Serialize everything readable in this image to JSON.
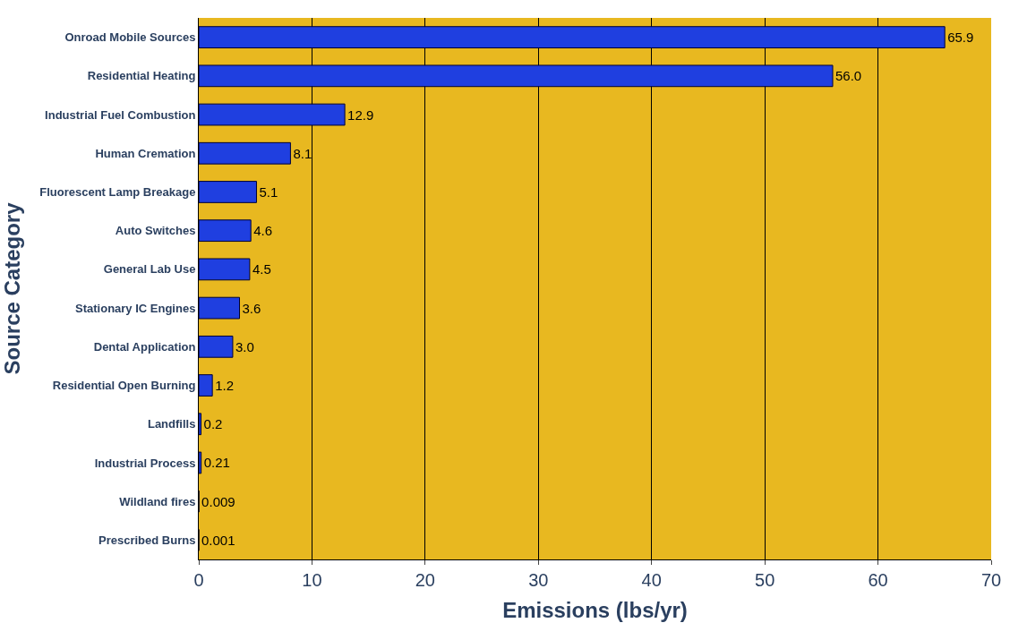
{
  "chart_data": {
    "type": "bar",
    "orientation": "horizontal",
    "xlabel": "Emissions (lbs/yr)",
    "ylabel": "Source Category",
    "categories": [
      "Onroad Mobile Sources",
      "Residential Heating",
      "Industrial Fuel Combustion",
      "Human Cremation",
      "Fluorescent Lamp Breakage",
      "Auto Switches",
      "General Lab Use",
      "Stationary IC Engines",
      "Dental Application",
      "Residential Open Burning",
      "Landfills",
      "Industrial Process",
      "Wildland fires",
      "Prescribed Burns"
    ],
    "values": [
      65.9,
      56.0,
      12.9,
      8.1,
      5.1,
      4.6,
      4.5,
      3.6,
      3.0,
      1.2,
      0.2,
      0.21,
      0.009,
      0.001
    ],
    "value_labels": [
      "65.9",
      "56.0",
      "12.9",
      "8.1",
      "5.1",
      "4.6",
      "4.5",
      "3.6",
      "3.0",
      "1.2",
      "0.2",
      "0.21",
      "0.009",
      "0.001"
    ],
    "color": "#1f3fe0",
    "xlim": [
      0,
      70
    ],
    "xticks": [
      0,
      10,
      20,
      30,
      40,
      50,
      60,
      70
    ],
    "grid": "x"
  }
}
